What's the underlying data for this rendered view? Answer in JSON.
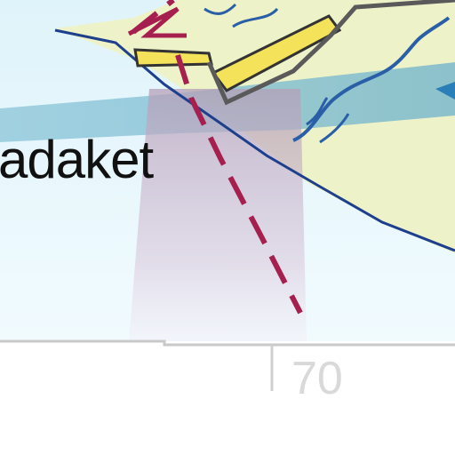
{
  "map": {
    "place_label": "adaket",
    "scale_tick_label": "70"
  },
  "colors": {
    "sky": "#e6f6fb",
    "land": "#eef2c8",
    "water_band": "#7fbfd3",
    "shoreline": "#1e3f8c",
    "route_dashed": "#a6204f",
    "route_shadow": "#c7a7c7",
    "highlight_yellow": "#f3e25a",
    "outline_dark": "#555555",
    "axis_line": "#cccccc",
    "text": "#111111"
  },
  "icons": [
    "route-dashed-line",
    "shoreline-outline",
    "river-sketch"
  ]
}
